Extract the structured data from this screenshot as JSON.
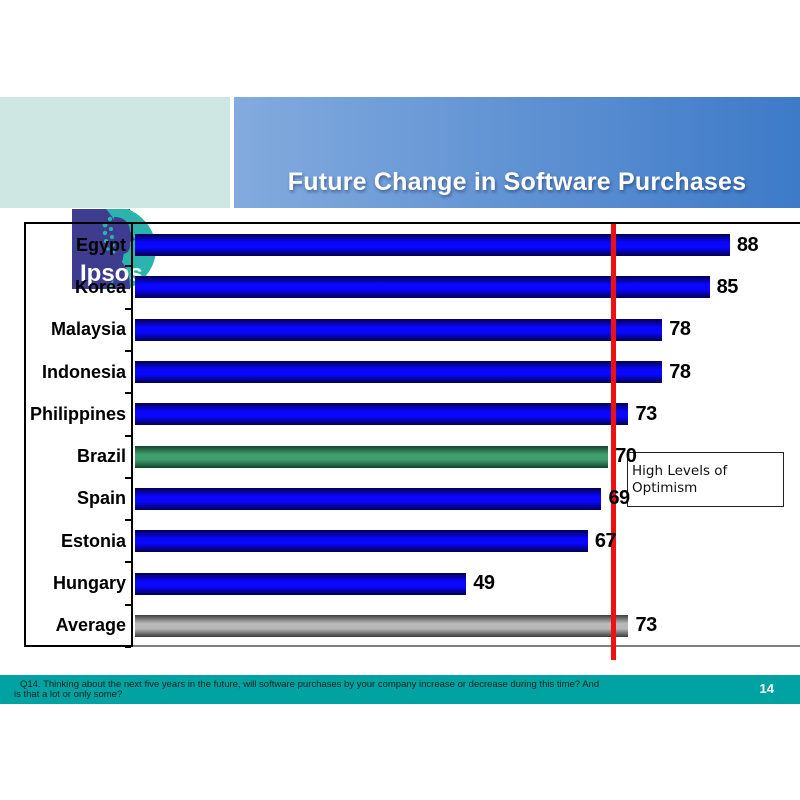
{
  "header": {
    "logo_text": "Ipsos",
    "title": "Future Change in Software Purchases",
    "left_panel_color": "#cfe7e3",
    "band_gradient": [
      "#83abde",
      "#3d7ac8"
    ],
    "logo_colors": {
      "indigo": "#3d3c8f",
      "teal": "#2bb4ab"
    }
  },
  "chart_data": {
    "type": "bar",
    "orientation": "horizontal",
    "title": "Future Change in Software Purchases",
    "categories": [
      "Egypt",
      "Korea",
      "Malaysia",
      "Indonesia",
      "Philippines",
      "Brazil",
      "Spain",
      "Estonia",
      "Hungary",
      "Average"
    ],
    "values": [
      88,
      85,
      78,
      78,
      73,
      70,
      69,
      67,
      49,
      73
    ],
    "bar_colors": [
      "blue",
      "blue",
      "blue",
      "blue",
      "blue",
      "green",
      "blue",
      "blue",
      "blue",
      "gray"
    ],
    "value_axis_range": [
      0,
      98
    ],
    "data_labels": true,
    "gridlines": false,
    "reference_line_value": 71,
    "reference_line_color": "#ee1111",
    "annotation": "High Levels of Optimism",
    "palette": {
      "blue_mid": "#0a06ff",
      "blue_edge": "#02004e",
      "green_mid": "#3f9e6d",
      "green_edge": "#16432c",
      "gray_mid": "#b8b8b8",
      "gray_edge": "#3c3c3c"
    }
  },
  "footer": {
    "band_color": "#00a2a2",
    "lines": [
      "Q14. Thinking about the next five years in the future, will software purchases by your company increase or decrease during this time?  And",
      "is that a lot or only some?"
    ],
    "page_number": "14"
  }
}
